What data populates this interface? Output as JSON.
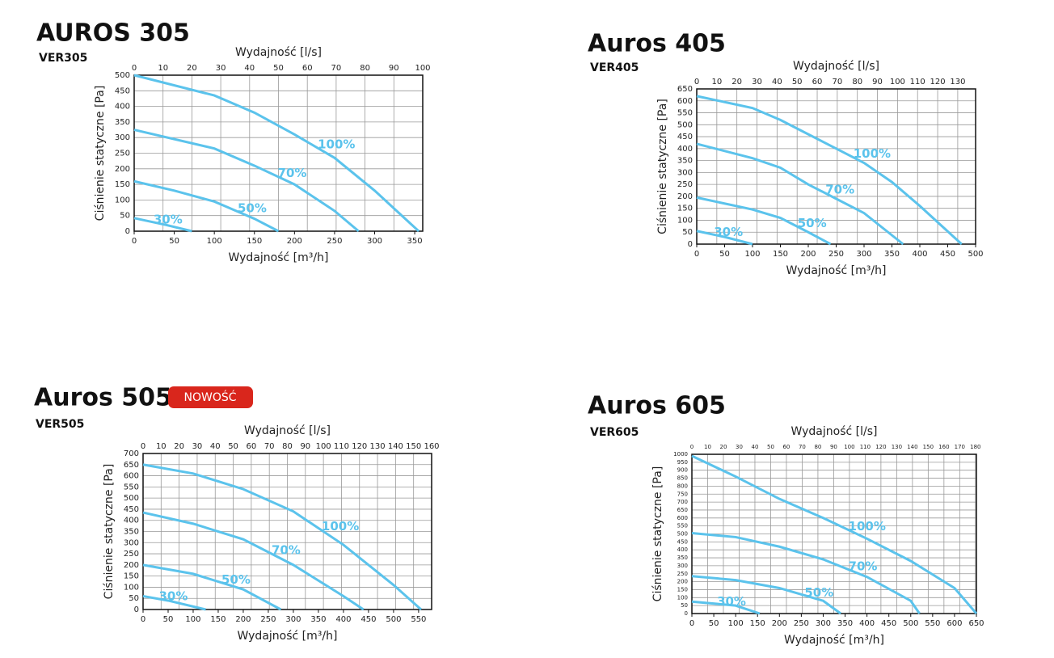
{
  "chart_data": [
    {
      "type": "line",
      "title": "AUROS 305",
      "subtitle": "VER305",
      "x2label": "Wydajność [l/s]",
      "xlabel": "Wydajność [m³/h]",
      "ylabel": "Ciśnienie statyczne [Pa]",
      "xlim": [
        0,
        360
      ],
      "xticks": [
        0,
        50,
        100,
        150,
        200,
        250,
        300,
        350
      ],
      "x2lim": [
        0,
        100
      ],
      "x2ticks": [
        0,
        10,
        20,
        30,
        40,
        50,
        60,
        70,
        80,
        90,
        100
      ],
      "ylim": [
        0,
        500
      ],
      "yticks": [
        0,
        50,
        100,
        150,
        200,
        250,
        300,
        350,
        400,
        450,
        500
      ],
      "grid": true,
      "series": [
        {
          "name": "30%",
          "color": "#5bc3ec",
          "x": [
            0,
            40,
            72
          ],
          "values": [
            42,
            20,
            0
          ]
        },
        {
          "name": "50%",
          "color": "#5bc3ec",
          "x": [
            0,
            50,
            100,
            150,
            180
          ],
          "values": [
            160,
            130,
            95,
            40,
            0
          ]
        },
        {
          "name": "70%",
          "color": "#5bc3ec",
          "x": [
            0,
            100,
            150,
            200,
            250,
            280
          ],
          "values": [
            325,
            265,
            210,
            150,
            65,
            0
          ]
        },
        {
          "name": "100%",
          "color": "#5bc3ec",
          "x": [
            0,
            100,
            150,
            200,
            250,
            300,
            355
          ],
          "values": [
            500,
            435,
            380,
            310,
            235,
            130,
            0
          ]
        }
      ]
    },
    {
      "type": "line",
      "title": "Auros 405",
      "subtitle": "VER405",
      "x2label": "Wydajność [l/s]",
      "xlabel": "Wydajność [m³/h]",
      "ylabel": "Ciśnienie statyczne [Pa]",
      "xlim": [
        0,
        500
      ],
      "xticks": [
        0,
        50,
        100,
        150,
        200,
        250,
        300,
        350,
        400,
        450,
        500
      ],
      "x2lim": [
        0,
        138.9
      ],
      "x2ticks": [
        0,
        10,
        20,
        30,
        40,
        50,
        60,
        70,
        80,
        90,
        100,
        110,
        120,
        130
      ],
      "ylim": [
        0,
        650
      ],
      "yticks": [
        0,
        50,
        100,
        150,
        200,
        250,
        300,
        350,
        400,
        450,
        500,
        550,
        600,
        650
      ],
      "grid": true,
      "series": [
        {
          "name": "30%",
          "color": "#5bc3ec",
          "x": [
            0,
            50,
            100
          ],
          "values": [
            55,
            30,
            0
          ]
        },
        {
          "name": "50%",
          "color": "#5bc3ec",
          "x": [
            0,
            100,
            150,
            200,
            240
          ],
          "values": [
            195,
            145,
            110,
            50,
            0
          ]
        },
        {
          "name": "70%",
          "color": "#5bc3ec",
          "x": [
            0,
            100,
            150,
            200,
            250,
            300,
            370
          ],
          "values": [
            420,
            360,
            320,
            250,
            190,
            130,
            0
          ]
        },
        {
          "name": "100%",
          "color": "#5bc3ec",
          "x": [
            0,
            100,
            150,
            200,
            250,
            300,
            350,
            400,
            475
          ],
          "values": [
            620,
            570,
            520,
            460,
            400,
            340,
            260,
            160,
            0
          ]
        }
      ]
    },
    {
      "type": "line",
      "title": "Auros 505",
      "badge": "NOWOŚĆ",
      "subtitle": "VER505",
      "x2label": "Wydajność [l/s]",
      "xlabel": "Wydajność [m³/h]",
      "ylabel": "Ciśnienie statyczne [Pa]",
      "xlim": [
        0,
        576
      ],
      "xticks": [
        0,
        50,
        100,
        150,
        200,
        250,
        300,
        350,
        400,
        450,
        500,
        550
      ],
      "x2lim": [
        0,
        160
      ],
      "x2ticks": [
        0,
        10,
        20,
        30,
        40,
        50,
        60,
        70,
        80,
        90,
        100,
        110,
        120,
        130,
        140,
        150,
        160
      ],
      "ylim": [
        0,
        700
      ],
      "yticks": [
        0,
        50,
        100,
        150,
        200,
        250,
        300,
        350,
        400,
        450,
        500,
        550,
        600,
        650,
        700
      ],
      "grid": true,
      "series": [
        {
          "name": "30%",
          "color": "#5bc3ec",
          "x": [
            0,
            50,
            125
          ],
          "values": [
            60,
            40,
            0
          ]
        },
        {
          "name": "50%",
          "color": "#5bc3ec",
          "x": [
            0,
            100,
            200,
            275
          ],
          "values": [
            200,
            160,
            90,
            0
          ]
        },
        {
          "name": "70%",
          "color": "#5bc3ec",
          "x": [
            0,
            100,
            200,
            300,
            400,
            440
          ],
          "values": [
            435,
            385,
            315,
            200,
            60,
            0
          ]
        },
        {
          "name": "100%",
          "color": "#5bc3ec",
          "x": [
            0,
            100,
            200,
            300,
            400,
            500,
            555
          ],
          "values": [
            650,
            610,
            540,
            440,
            290,
            110,
            0
          ]
        }
      ]
    },
    {
      "type": "line",
      "title": "Auros 605",
      "subtitle": "VER605",
      "x2label": "Wydajność [l/s]",
      "xlabel": "Wydajność [m³/h]",
      "ylabel": "Ciśnienie statyczne [Pa]",
      "xlim": [
        0,
        650
      ],
      "xticks": [
        0,
        50,
        100,
        150,
        200,
        250,
        300,
        350,
        400,
        450,
        500,
        550,
        600,
        650
      ],
      "x2lim": [
        0,
        180.6
      ],
      "x2ticks": [
        0,
        10,
        20,
        30,
        40,
        50,
        60,
        70,
        80,
        90,
        100,
        110,
        120,
        130,
        140,
        150,
        160,
        170,
        180
      ],
      "ylim": [
        0,
        1000
      ],
      "yticks": [
        0,
        50,
        100,
        150,
        200,
        250,
        300,
        350,
        400,
        450,
        500,
        550,
        600,
        650,
        700,
        750,
        800,
        850,
        900,
        950,
        1000
      ],
      "grid": true,
      "series": [
        {
          "name": "30%",
          "color": "#5bc3ec",
          "x": [
            0,
            100,
            155
          ],
          "values": [
            75,
            50,
            0
          ]
        },
        {
          "name": "50%",
          "color": "#5bc3ec",
          "x": [
            0,
            100,
            200,
            300,
            340
          ],
          "values": [
            235,
            210,
            160,
            80,
            0
          ]
        },
        {
          "name": "70%",
          "color": "#5bc3ec",
          "x": [
            0,
            100,
            200,
            300,
            400,
            500,
            520
          ],
          "values": [
            505,
            480,
            420,
            340,
            230,
            80,
            0
          ]
        },
        {
          "name": "100%",
          "color": "#5bc3ec",
          "x": [
            0,
            100,
            200,
            300,
            400,
            500,
            600,
            650
          ],
          "values": [
            990,
            860,
            720,
            600,
            470,
            330,
            160,
            0
          ]
        }
      ]
    }
  ]
}
